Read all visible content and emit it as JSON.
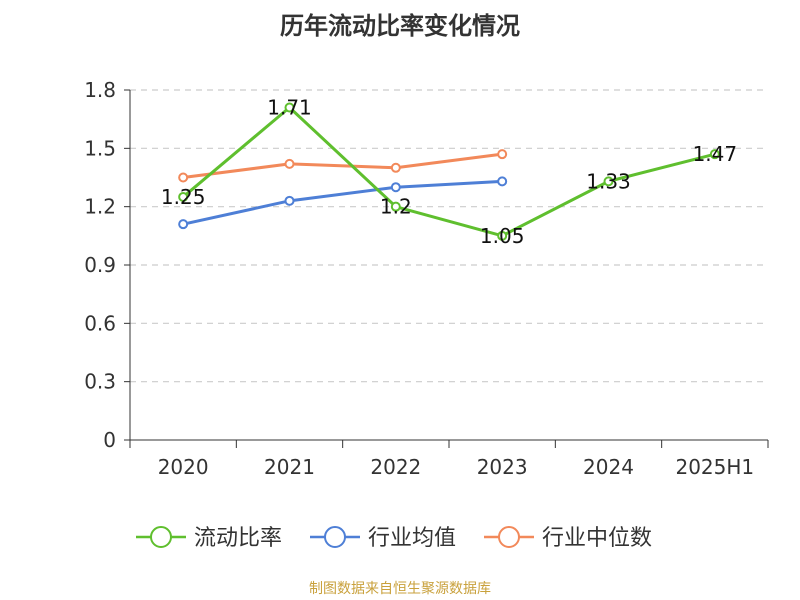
{
  "chart_data": {
    "type": "line",
    "title": "历年流动比率变化情况",
    "categories": [
      "2020",
      "2021",
      "2022",
      "2023",
      "2024",
      "2025H1"
    ],
    "ylim": [
      0,
      1.8
    ],
    "yticks": [
      "0",
      "0.3",
      "0.6",
      "0.9",
      "1.2",
      "1.5",
      "1.8"
    ],
    "grid": true,
    "legend_position": "bottom",
    "series": [
      {
        "name": "流动比率",
        "color": "#5fbf2e",
        "values": [
          1.25,
          1.71,
          1.2,
          1.05,
          1.33,
          1.47
        ],
        "labels": [
          "1.25",
          "1.71",
          "1.2",
          "1.05",
          "1.33",
          "1.47"
        ]
      },
      {
        "name": "行业均值",
        "color": "#4e7fd6",
        "values": [
          1.11,
          1.23,
          1.3,
          1.33,
          null,
          null
        ]
      },
      {
        "name": "行业中位数",
        "color": "#f2895a",
        "values": [
          1.35,
          1.42,
          1.4,
          1.47,
          null,
          null
        ]
      }
    ]
  },
  "source": "制图数据来自恒生聚源数据库"
}
